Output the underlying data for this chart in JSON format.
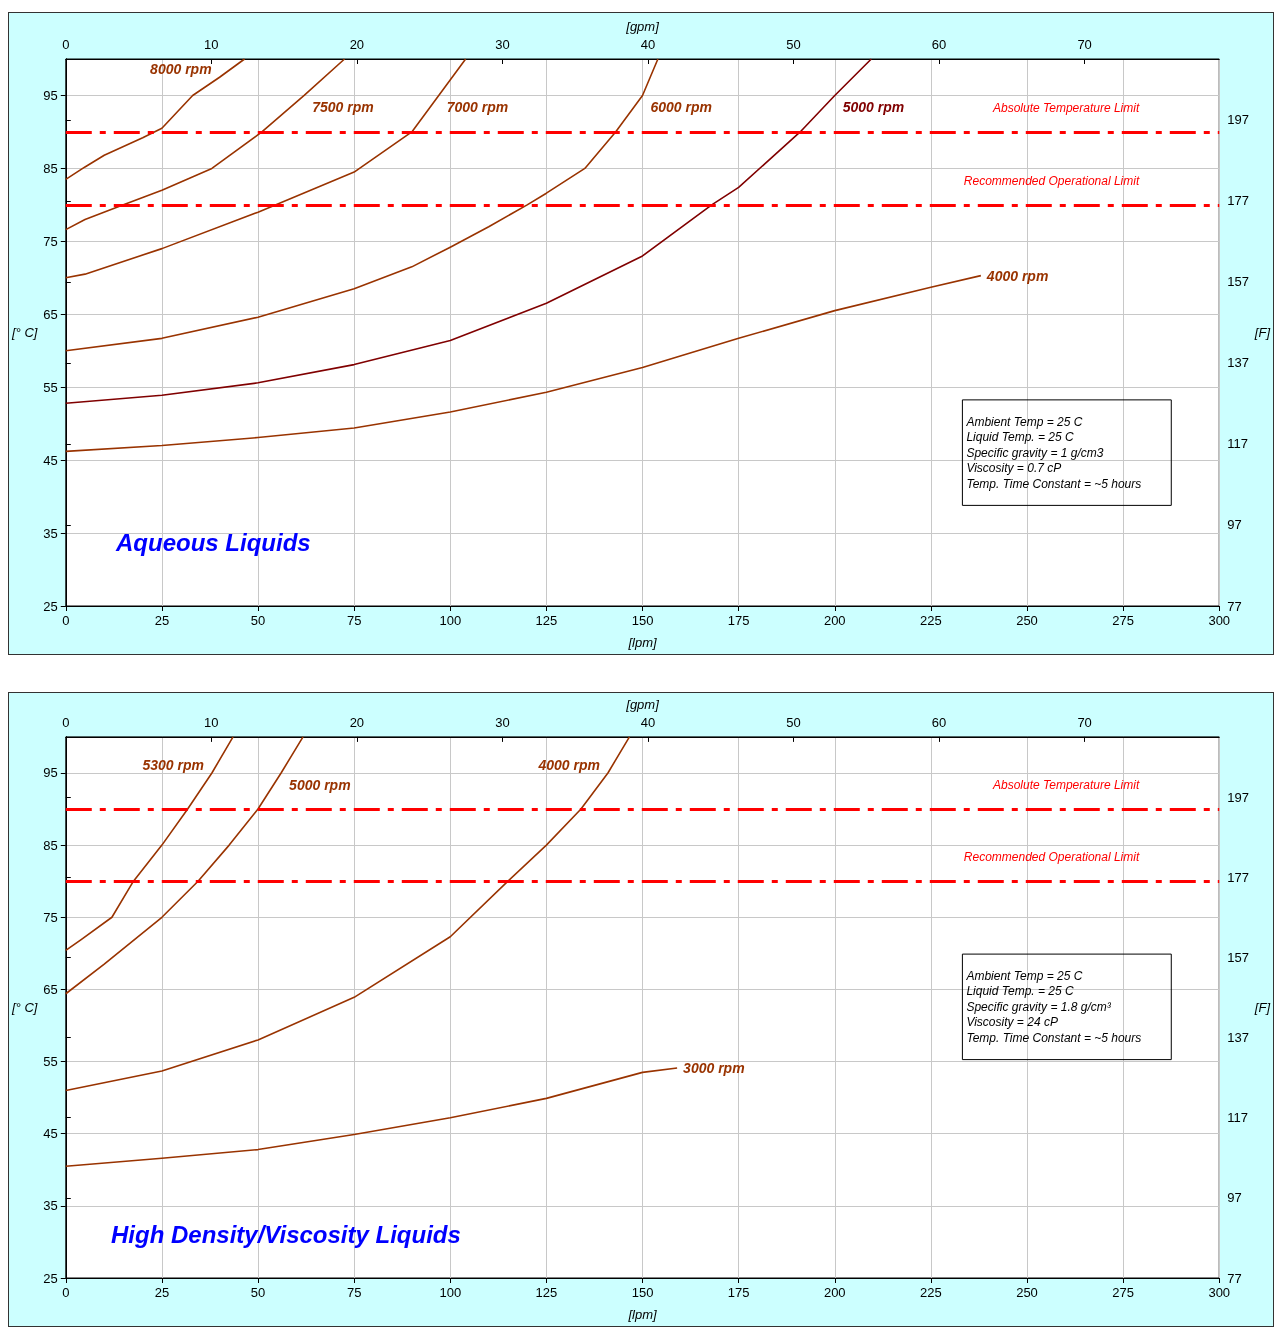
{
  "chart_data": [
    {
      "type": "line",
      "title": "Aqueous Liquids",
      "xlabel": "[lpm]",
      "x2label": "[gpm]",
      "ylabel": "[° C]",
      "y2label": "[F]",
      "xlim": [
        0,
        300
      ],
      "xticks": [
        0,
        25,
        50,
        75,
        100,
        125,
        150,
        175,
        200,
        225,
        250,
        275,
        300
      ],
      "x2lim": [
        0,
        79.25
      ],
      "x2ticks": [
        0,
        10,
        20,
        30,
        40,
        50,
        60,
        70
      ],
      "ylim": [
        25,
        100
      ],
      "yticks": [
        25,
        35,
        45,
        55,
        65,
        75,
        85,
        95
      ],
      "y2lim": [
        77,
        212
      ],
      "y2ticks": [
        77,
        97,
        117,
        137,
        157,
        177,
        197
      ],
      "grid": true,
      "marker": "none",
      "line_style": "solid",
      "series": [
        {
          "name": "8000 rpm",
          "color": "#993300",
          "x": [
            0,
            5,
            10,
            20,
            25,
            33,
            40,
            46.5
          ],
          "values": [
            83.5,
            85.2,
            86.8,
            89.2,
            90.5,
            95,
            97.5,
            100
          ]
        },
        {
          "name": "7500 rpm",
          "color": "#993300",
          "x": [
            0,
            5,
            15,
            25,
            38,
            51,
            62,
            72.5
          ],
          "values": [
            76.6,
            78,
            80,
            82,
            85,
            90,
            95,
            100
          ]
        },
        {
          "name": "7000 rpm",
          "color": "#993300",
          "x": [
            0,
            5,
            25,
            50,
            75,
            90,
            97,
            104
          ],
          "values": [
            70,
            70.5,
            74,
            79,
            84.5,
            90,
            95,
            100
          ]
        },
        {
          "name": "6000 rpm",
          "color": "#993300",
          "x": [
            0,
            25,
            50,
            75,
            90,
            100,
            110,
            120,
            125,
            135,
            143,
            150,
            154
          ],
          "values": [
            60,
            61.7,
            64.6,
            68.5,
            71.5,
            74.2,
            77,
            80,
            81.6,
            85,
            90,
            95,
            100
          ]
        },
        {
          "name": "5000 rpm",
          "color": "#800000",
          "x": [
            0,
            25,
            50,
            75,
            100,
            125,
            150,
            168,
            175,
            191,
            200,
            209.5
          ],
          "values": [
            52.8,
            53.9,
            55.6,
            58.1,
            61.4,
            66.5,
            73,
            80,
            82.4,
            90,
            95,
            100
          ]
        },
        {
          "name": "4000 rpm",
          "color": "#993300",
          "x": [
            0,
            25,
            50,
            75,
            100,
            125,
            150,
            175,
            200,
            225,
            238
          ],
          "values": [
            46.2,
            47,
            48.1,
            49.4,
            51.6,
            54.3,
            57.7,
            61.7,
            65.5,
            68.7,
            70.3
          ]
        }
      ],
      "ref_lines": [
        {
          "axis": "y",
          "value": 90,
          "label": "Absolute Temperature Limit",
          "color": "#ff0000",
          "line_style": "dashed"
        },
        {
          "axis": "y",
          "value": 80,
          "label": "Recommended Operational Limit",
          "color": "#ff0000",
          "line_style": "dashed"
        }
      ],
      "annotations": [
        "Ambient Temp = 25 C\nLiquid Temp. = 25 C\nSpecific gravity = 1 g/cm3\nViscosity = 0.7 cP\nTemp. Time Constant = ~5 hours"
      ]
    },
    {
      "type": "line",
      "title": "High Density/Viscosity Liquids",
      "xlabel": "[lpm]",
      "x2label": "[gpm]",
      "ylabel": "[° C]",
      "y2label": "[F]",
      "xlim": [
        0,
        300
      ],
      "xticks": [
        0,
        25,
        50,
        75,
        100,
        125,
        150,
        175,
        200,
        225,
        250,
        275,
        300
      ],
      "x2lim": [
        0,
        79.25
      ],
      "x2ticks": [
        0,
        10,
        20,
        30,
        40,
        50,
        60,
        70
      ],
      "ylim": [
        25,
        100
      ],
      "yticks": [
        25,
        35,
        45,
        55,
        65,
        75,
        85,
        95
      ],
      "y2lim": [
        77,
        212
      ],
      "y2ticks": [
        77,
        97,
        117,
        137,
        157,
        177,
        197
      ],
      "grid": true,
      "marker": "none",
      "line_style": "solid",
      "series": [
        {
          "name": "5300 rpm",
          "color": "#993300",
          "x": [
            0,
            4,
            12,
            17.6,
            25,
            31.7,
            38,
            43.5
          ],
          "values": [
            70.4,
            71.9,
            75,
            80,
            85,
            90,
            95,
            100
          ]
        },
        {
          "name": "5000 rpm",
          "color": "#993300",
          "x": [
            0,
            10,
            25,
            34.4,
            42.5,
            50,
            56,
            61.7
          ],
          "values": [
            64.4,
            68.5,
            75,
            80,
            85,
            90,
            95,
            100
          ]
        },
        {
          "name": "4000 rpm",
          "color": "#993300",
          "x": [
            0,
            25,
            50,
            75,
            100,
            115,
            125,
            134,
            141,
            146.6
          ],
          "values": [
            51,
            53.7,
            58,
            63.9,
            72.3,
            80,
            85,
            90,
            95,
            100
          ]
        },
        {
          "name": "3000 rpm",
          "color": "#993300",
          "x": [
            0,
            25,
            50,
            75,
            100,
            125,
            150,
            159
          ],
          "values": [
            40.5,
            41.6,
            42.8,
            44.9,
            47.2,
            49.9,
            53.5,
            54.1
          ]
        }
      ],
      "ref_lines": [
        {
          "axis": "y",
          "value": 90,
          "label": "Absolute Temperature Limit",
          "color": "#ff0000",
          "line_style": "dashed"
        },
        {
          "axis": "y",
          "value": 80,
          "label": "Recommended Operational Limit",
          "color": "#ff0000",
          "line_style": "dashed"
        }
      ],
      "annotations": [
        "Ambient Temp = 25 C\nLiquid Temp. = 25 C\nSpecific gravity = 1.8 g/cm³\nViscosity = 24 cP\nTemp. Time Constant = ~5 hours"
      ]
    }
  ]
}
